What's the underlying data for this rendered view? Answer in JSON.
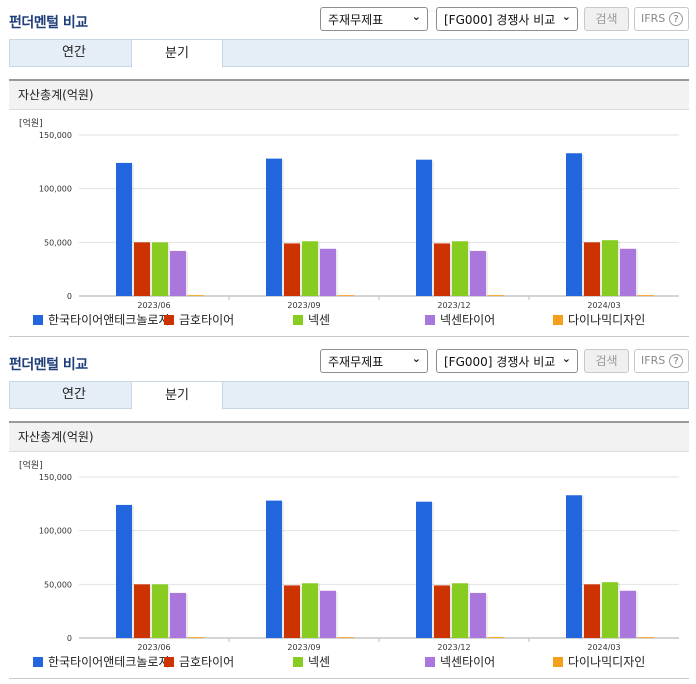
{
  "panels": [
    {
      "title": "펀더멘털 비교",
      "select_statement": "주재무제표",
      "select_compare": "[FG000] 경쟁사 비교",
      "search_label": "검색",
      "ifrs_label": "IFRS",
      "help_icon_label": "?",
      "tabs": [
        "연간",
        "분기"
      ],
      "active_tab": "분기",
      "section_title": "자산총계(억원)"
    },
    {
      "title": "펀더멘털 비교",
      "select_statement": "주재무제표",
      "select_compare": "[FG000] 경쟁사 비교",
      "search_label": "검색",
      "ifrs_label": "IFRS",
      "help_icon_label": "?",
      "tabs": [
        "연간",
        "분기"
      ],
      "active_tab": "분기",
      "section_title": "자산총계(억원)"
    }
  ],
  "icons": {
    "select_chevron": "chevron-down-icon",
    "help": "help-circle-icon"
  },
  "colors": {
    "title": "#1f3e7a",
    "tab_bar": "#e5eef7"
  },
  "chart_data": [
    {
      "type": "bar",
      "unit_label": "[억원]",
      "categories": [
        "2023/06",
        "2023/09",
        "2023/12",
        "2024/03"
      ],
      "ylim": [
        0,
        150000
      ],
      "yticks": [
        "0",
        "50,000",
        "100,000",
        "150,000"
      ],
      "grid": true,
      "legend_position": "bottom",
      "series": [
        {
          "name": "한국타이어앤테크놀로지",
          "color": "#2266dd",
          "values": [
            124000,
            128000,
            127000,
            133000
          ]
        },
        {
          "name": "금호타이어",
          "color": "#cc3300",
          "values": [
            50000,
            49000,
            49000,
            50000
          ]
        },
        {
          "name": "넥센",
          "color": "#88cc22",
          "values": [
            50000,
            51000,
            51000,
            52000
          ]
        },
        {
          "name": "넥센타이어",
          "color": "#aa77dd",
          "values": [
            42000,
            44000,
            42000,
            44000
          ]
        },
        {
          "name": "다이나믹디자인",
          "color": "#f5a01a",
          "values": [
            800,
            800,
            800,
            800
          ]
        }
      ]
    },
    {
      "type": "bar",
      "unit_label": "[억원]",
      "categories": [
        "2023/06",
        "2023/09",
        "2023/12",
        "2024/03"
      ],
      "ylim": [
        0,
        150000
      ],
      "yticks": [
        "0",
        "50,000",
        "100,000",
        "150,000"
      ],
      "grid": true,
      "legend_position": "bottom",
      "series": [
        {
          "name": "한국타이어앤테크놀로지",
          "color": "#2266dd",
          "values": [
            124000,
            128000,
            127000,
            133000
          ]
        },
        {
          "name": "금호타이어",
          "color": "#cc3300",
          "values": [
            50000,
            49000,
            49000,
            50000
          ]
        },
        {
          "name": "넥센",
          "color": "#88cc22",
          "values": [
            50000,
            51000,
            51000,
            52000
          ]
        },
        {
          "name": "넥센타이어",
          "color": "#aa77dd",
          "values": [
            42000,
            44000,
            42000,
            44000
          ]
        },
        {
          "name": "다이나믹디자인",
          "color": "#f5a01a",
          "values": [
            800,
            800,
            800,
            800
          ]
        }
      ]
    }
  ]
}
